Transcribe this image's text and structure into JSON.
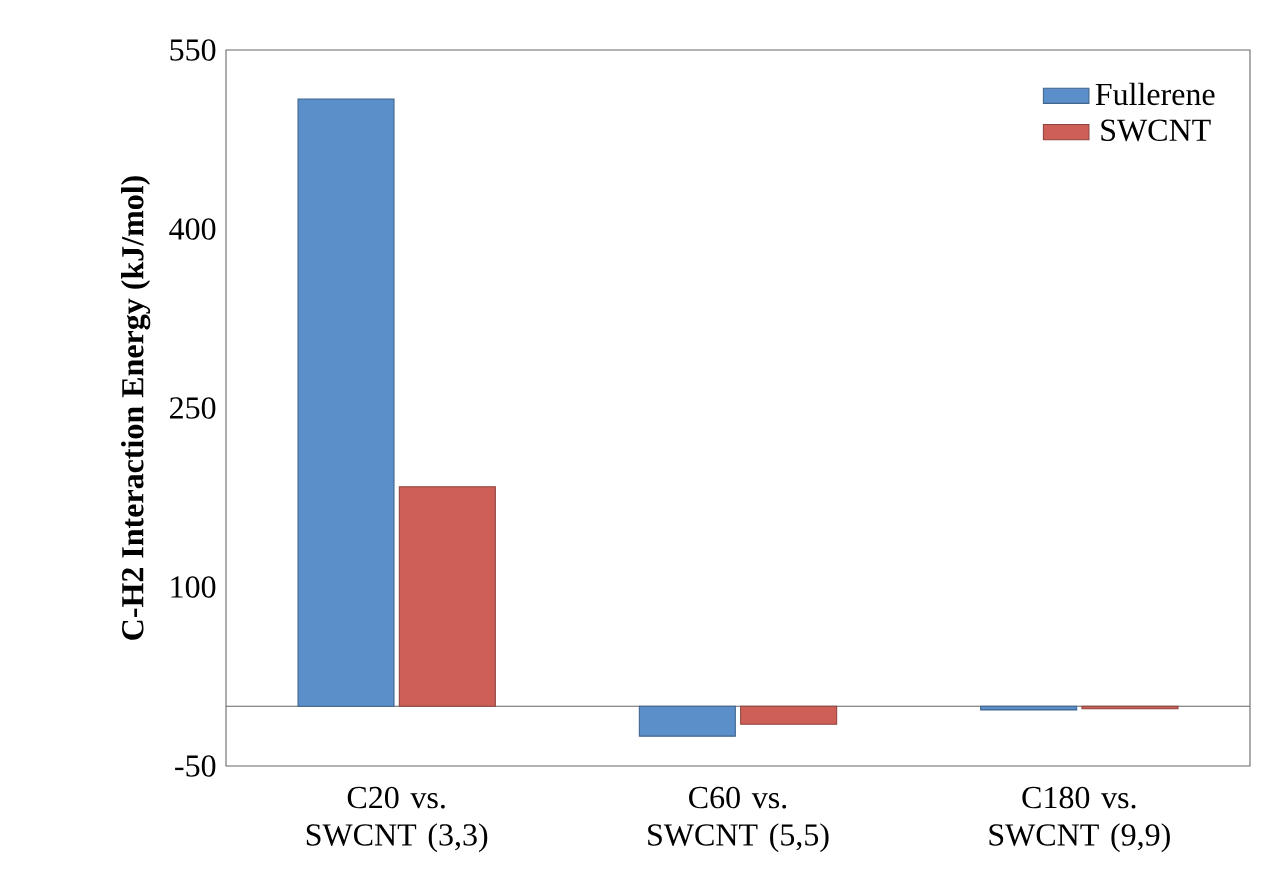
{
  "chart_data": {
    "type": "bar",
    "ylabel": "C-H2 Interaction Energy (kJ/mol)",
    "categories": [
      "C20 vs. SWCNT (3,3)",
      "C60 vs. SWCNT (5,5)",
      "C180 vs. SWCNT (9,9)"
    ],
    "series": [
      {
        "name": "Fullerene",
        "color": "#5b8fc9",
        "values": [
          509,
          -25,
          -3
        ]
      },
      {
        "name": "SWCNT",
        "color": "#cd5f57",
        "values": [
          184,
          -15,
          -2
        ]
      }
    ],
    "ylim": [
      -50,
      550
    ],
    "yticks": [
      -50,
      100,
      250,
      400,
      550
    ],
    "legend": "top right"
  }
}
